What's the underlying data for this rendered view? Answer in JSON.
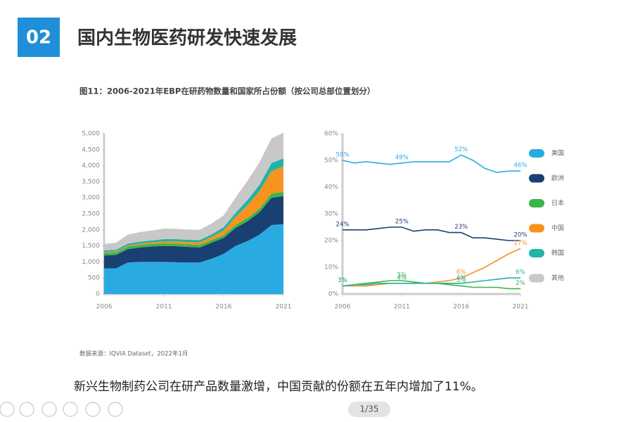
{
  "header": {
    "badge": "02",
    "title": "国内生物医药研发快速发展"
  },
  "figure_title": "图11：2006-2021年EBP在研药物数量和国家所占份额（按公司总部位置划分）",
  "chart_data": [
    {
      "type": "stacked_area",
      "x": [
        2006,
        2007,
        2008,
        2009,
        2010,
        2011,
        2012,
        2013,
        2014,
        2015,
        2016,
        2017,
        2018,
        2019,
        2020,
        2021
      ],
      "xlim": [
        2006,
        2021
      ],
      "xticks": [
        2006,
        2011,
        2016,
        2021
      ],
      "ylim": [
        0,
        5000
      ],
      "yticks": [
        0,
        500,
        {
          "value": 1000,
          "label": "1,000"
        },
        {
          "value": 1500,
          "label": "1,500"
        },
        {
          "value": 2000,
          "label": "2,000"
        },
        {
          "value": 2500,
          "label": "2,500"
        },
        {
          "value": 3000,
          "label": "3,000"
        },
        {
          "value": 3500,
          "label": "3,500"
        },
        {
          "value": 4000,
          "label": "4,000"
        },
        {
          "value": 4500,
          "label": "4,500"
        },
        {
          "value": 5000,
          "label": "5,000"
        }
      ],
      "series": [
        {
          "name": "美国",
          "color": "#29abe2",
          "values": [
            800,
            800,
            980,
            1000,
            1000,
            1000,
            990,
            980,
            980,
            1100,
            1250,
            1500,
            1650,
            1850,
            2150,
            2180
          ]
        },
        {
          "name": "欧洲",
          "color": "#1a3f73",
          "values": [
            400,
            420,
            420,
            450,
            480,
            500,
            500,
            490,
            470,
            500,
            500,
            560,
            620,
            700,
            850,
            870
          ]
        },
        {
          "name": "日本",
          "color": "#3ab54a",
          "values": [
            80,
            80,
            80,
            80,
            80,
            80,
            80,
            80,
            80,
            80,
            80,
            90,
            100,
            110,
            130,
            130
          ]
        },
        {
          "name": "中国",
          "color": "#f7931e",
          "values": [
            30,
            30,
            30,
            40,
            50,
            60,
            70,
            70,
            80,
            100,
            150,
            250,
            400,
            550,
            700,
            800
          ]
        },
        {
          "name": "韩国",
          "color": "#1fb5a9",
          "values": [
            50,
            50,
            60,
            60,
            60,
            70,
            70,
            70,
            70,
            80,
            100,
            130,
            160,
            200,
            250,
            250
          ]
        },
        {
          "name": "其他",
          "color": "#c8c8c8",
          "values": [
            200,
            220,
            280,
            300,
            310,
            330,
            320,
            320,
            320,
            340,
            370,
            480,
            600,
            700,
            770,
            800
          ]
        }
      ]
    },
    {
      "type": "line",
      "x": [
        2006,
        2007,
        2008,
        2009,
        2010,
        2011,
        2012,
        2013,
        2014,
        2015,
        2016,
        2017,
        2018,
        2019,
        2020,
        2021
      ],
      "xlim": [
        2006,
        2021
      ],
      "xticks": [
        2006,
        2011,
        2016,
        2021
      ],
      "ylim": [
        0,
        60
      ],
      "yticks": [
        {
          "value": 0,
          "label": "0%"
        },
        {
          "value": 10,
          "label": "10%"
        },
        {
          "value": 20,
          "label": "20%"
        },
        {
          "value": 30,
          "label": "30%"
        },
        {
          "value": 40,
          "label": "40%"
        },
        {
          "value": 50,
          "label": "50%"
        },
        {
          "value": 60,
          "label": "60%"
        }
      ],
      "series": [
        {
          "name": "美国",
          "color": "#29abe2",
          "values": [
            50,
            49,
            49.5,
            49,
            48.5,
            49,
            49.5,
            49.5,
            49.5,
            49.5,
            52,
            50,
            47,
            45.5,
            46,
            46
          ],
          "value_labels": [
            "50%",
            null,
            null,
            null,
            null,
            "49%",
            null,
            null,
            null,
            null,
            "52%",
            null,
            null,
            null,
            null,
            "46%"
          ]
        },
        {
          "name": "欧洲",
          "color": "#1a3f73",
          "values": [
            24,
            24,
            24,
            24.5,
            25,
            25,
            23.5,
            24,
            24,
            23,
            23,
            21,
            21,
            20.5,
            20,
            20
          ],
          "value_labels": [
            "24%",
            null,
            null,
            null,
            null,
            "25%",
            null,
            null,
            null,
            null,
            "23%",
            null,
            null,
            null,
            null,
            "20%"
          ]
        },
        {
          "name": "日本",
          "color": "#3ab54a",
          "values": [
            3,
            3.5,
            4,
            4.5,
            5,
            5,
            4.5,
            4,
            4,
            3.5,
            3,
            2.5,
            2.5,
            2.5,
            2,
            2
          ],
          "value_labels": [
            "3%",
            null,
            null,
            null,
            null,
            "5%",
            null,
            null,
            null,
            null,
            "3%",
            null,
            null,
            null,
            null,
            "2%"
          ]
        },
        {
          "name": "中国",
          "color": "#f7931e",
          "values": [
            3,
            3,
            3,
            3.5,
            4,
            4,
            4,
            4,
            4.5,
            5,
            6,
            8,
            10,
            12.5,
            15,
            17
          ],
          "value_labels": [
            "3%",
            null,
            null,
            null,
            null,
            "4%",
            null,
            null,
            null,
            null,
            "6%",
            null,
            null,
            null,
            null,
            "17%"
          ]
        },
        {
          "name": "韩国",
          "color": "#1fb5a9",
          "values": [
            3,
            3.5,
            3.5,
            4,
            4,
            4,
            4,
            4,
            4,
            4,
            4,
            4.5,
            5,
            5.5,
            6,
            6
          ],
          "value_labels": [
            "3%",
            null,
            null,
            null,
            null,
            "4%",
            null,
            null,
            null,
            null,
            "4%",
            null,
            null,
            null,
            null,
            "6%"
          ]
        },
        {
          "name": "其他",
          "color": "#c8c8c8"
        }
      ]
    }
  ],
  "source": "数据来源：IQVIA Dataset，2022年1月",
  "caption": "新兴生物制药公司在研产品数量激增，中国贡献的份额在五年内增加了11%。",
  "page_indicator": "1/35"
}
